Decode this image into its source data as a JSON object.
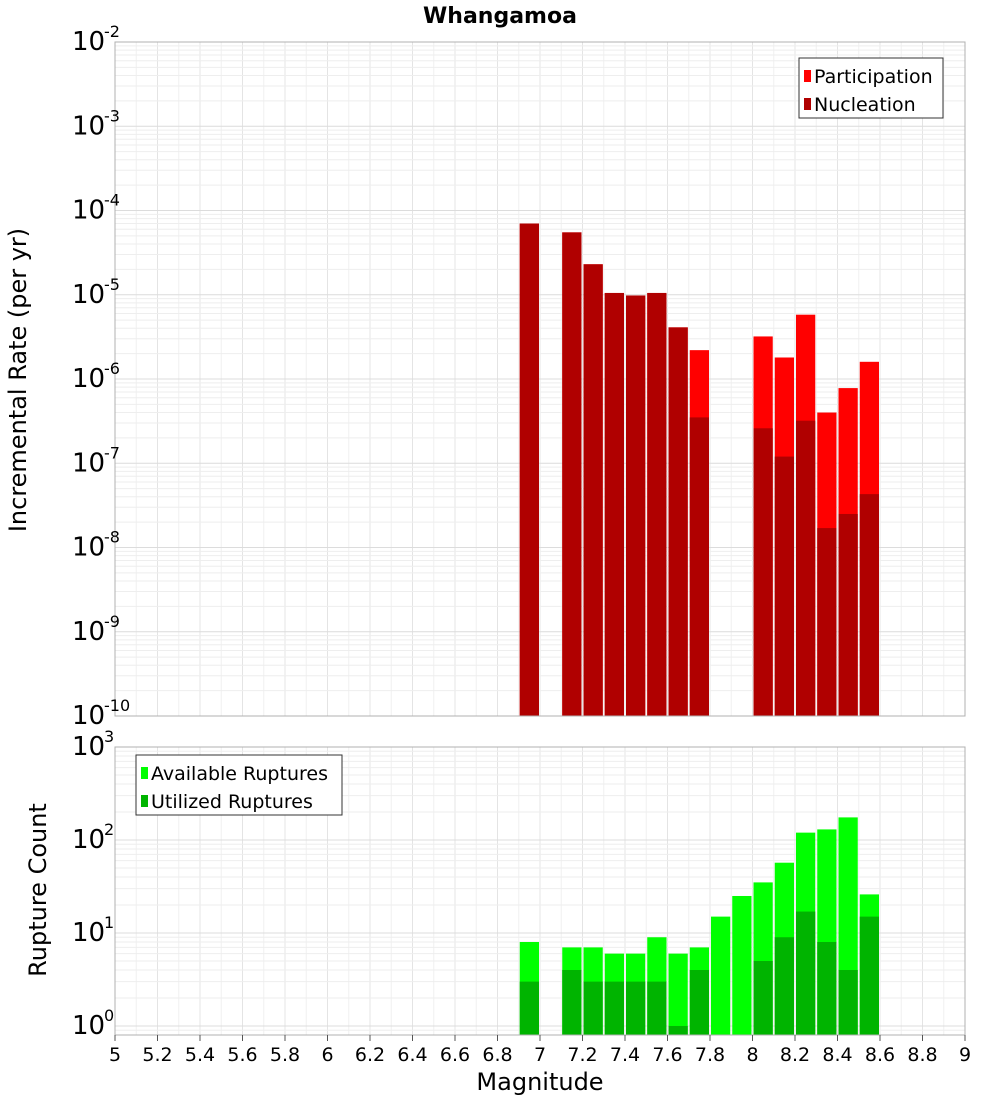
{
  "chart_data": [
    {
      "type": "bar",
      "title": "Whangamoa",
      "ylabel": "Incremental Rate (per yr)",
      "xlabel": "",
      "yscale": "log",
      "ylim": [
        1e-10,
        0.01
      ],
      "xlim": [
        5,
        9
      ],
      "grid": true,
      "legend_position": "top-right",
      "x": [
        6.95,
        7.15,
        7.25,
        7.35,
        7.45,
        7.55,
        7.65,
        7.75,
        8.05,
        8.15,
        8.25,
        8.35,
        8.45,
        8.55
      ],
      "series": [
        {
          "name": "Participation",
          "color": "#ff0000",
          "values": [
            7e-05,
            5.5e-05,
            2.3e-05,
            1.05e-05,
            9.8e-06,
            1.05e-05,
            4.1e-06,
            2.2e-06,
            3.2e-06,
            1.8e-06,
            5.8e-06,
            4e-07,
            7.8e-07,
            1.6e-06
          ]
        },
        {
          "name": "Nucleation",
          "color": "#b00000",
          "values": [
            7e-05,
            5.5e-05,
            2.3e-05,
            1.05e-05,
            9.8e-06,
            1.05e-05,
            4.1e-06,
            3.5e-07,
            2.6e-07,
            1.2e-07,
            3.2e-07,
            1.7e-08,
            2.5e-08,
            4.3e-08
          ]
        }
      ]
    },
    {
      "type": "bar",
      "title": "",
      "ylabel": "Rupture Count",
      "xlabel": "Magnitude",
      "yscale": "log",
      "ylim": [
        0.8,
        1000
      ],
      "xlim": [
        5,
        9
      ],
      "grid": true,
      "legend_position": "top-left",
      "x_ticks": [
        "5",
        "5.2",
        "5.4",
        "5.6",
        "5.8",
        "6",
        "6.2",
        "6.4",
        "6.6",
        "6.8",
        "7",
        "7.2",
        "7.4",
        "7.6",
        "7.8",
        "8",
        "8.2",
        "8.4",
        "8.6",
        "8.8",
        "9"
      ],
      "x": [
        6.95,
        7.15,
        7.25,
        7.35,
        7.45,
        7.55,
        7.65,
        7.75,
        7.85,
        7.95,
        8.05,
        8.15,
        8.25,
        8.35,
        8.45,
        8.55
      ],
      "series": [
        {
          "name": "Available Ruptures",
          "color": "#00ff00",
          "values": [
            8,
            7,
            7,
            6,
            6,
            9,
            6,
            7,
            15,
            25,
            35,
            57,
            120,
            130,
            175,
            26
          ]
        },
        {
          "name": "Utilized Ruptures",
          "color": "#00b400",
          "values": [
            3,
            4,
            3,
            3,
            3,
            3,
            1,
            4,
            0,
            0,
            5,
            9,
            17,
            8,
            4,
            15
          ]
        }
      ]
    }
  ]
}
